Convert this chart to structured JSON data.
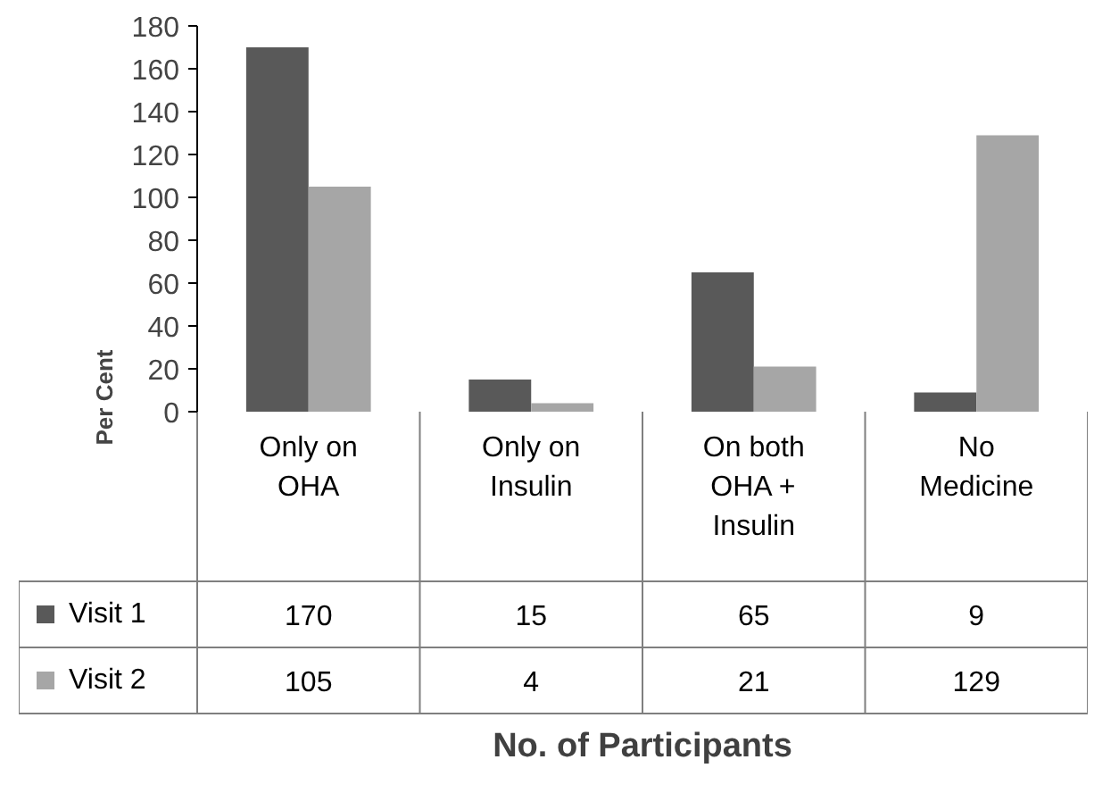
{
  "chart_data": {
    "type": "bar",
    "ylabel": "Per Cent",
    "annotations": [
      "No. of Participants"
    ],
    "categories": [
      "Only on OHA",
      "Only on Insulin",
      "On both OHA + Insulin",
      "No Medicine"
    ],
    "series": [
      {
        "name": "Visit 1",
        "color": "#595959",
        "values": [
          170,
          15,
          65,
          9
        ]
      },
      {
        "name": "Visit 2",
        "color": "#a6a6a6",
        "values": [
          105,
          4,
          21,
          129
        ]
      }
    ],
    "ylim": [
      0,
      180
    ],
    "yticks": [
      0,
      20,
      40,
      60,
      80,
      100,
      120,
      140,
      160,
      180
    ],
    "grid": false,
    "legend": "bottom left",
    "data_labels": true
  }
}
